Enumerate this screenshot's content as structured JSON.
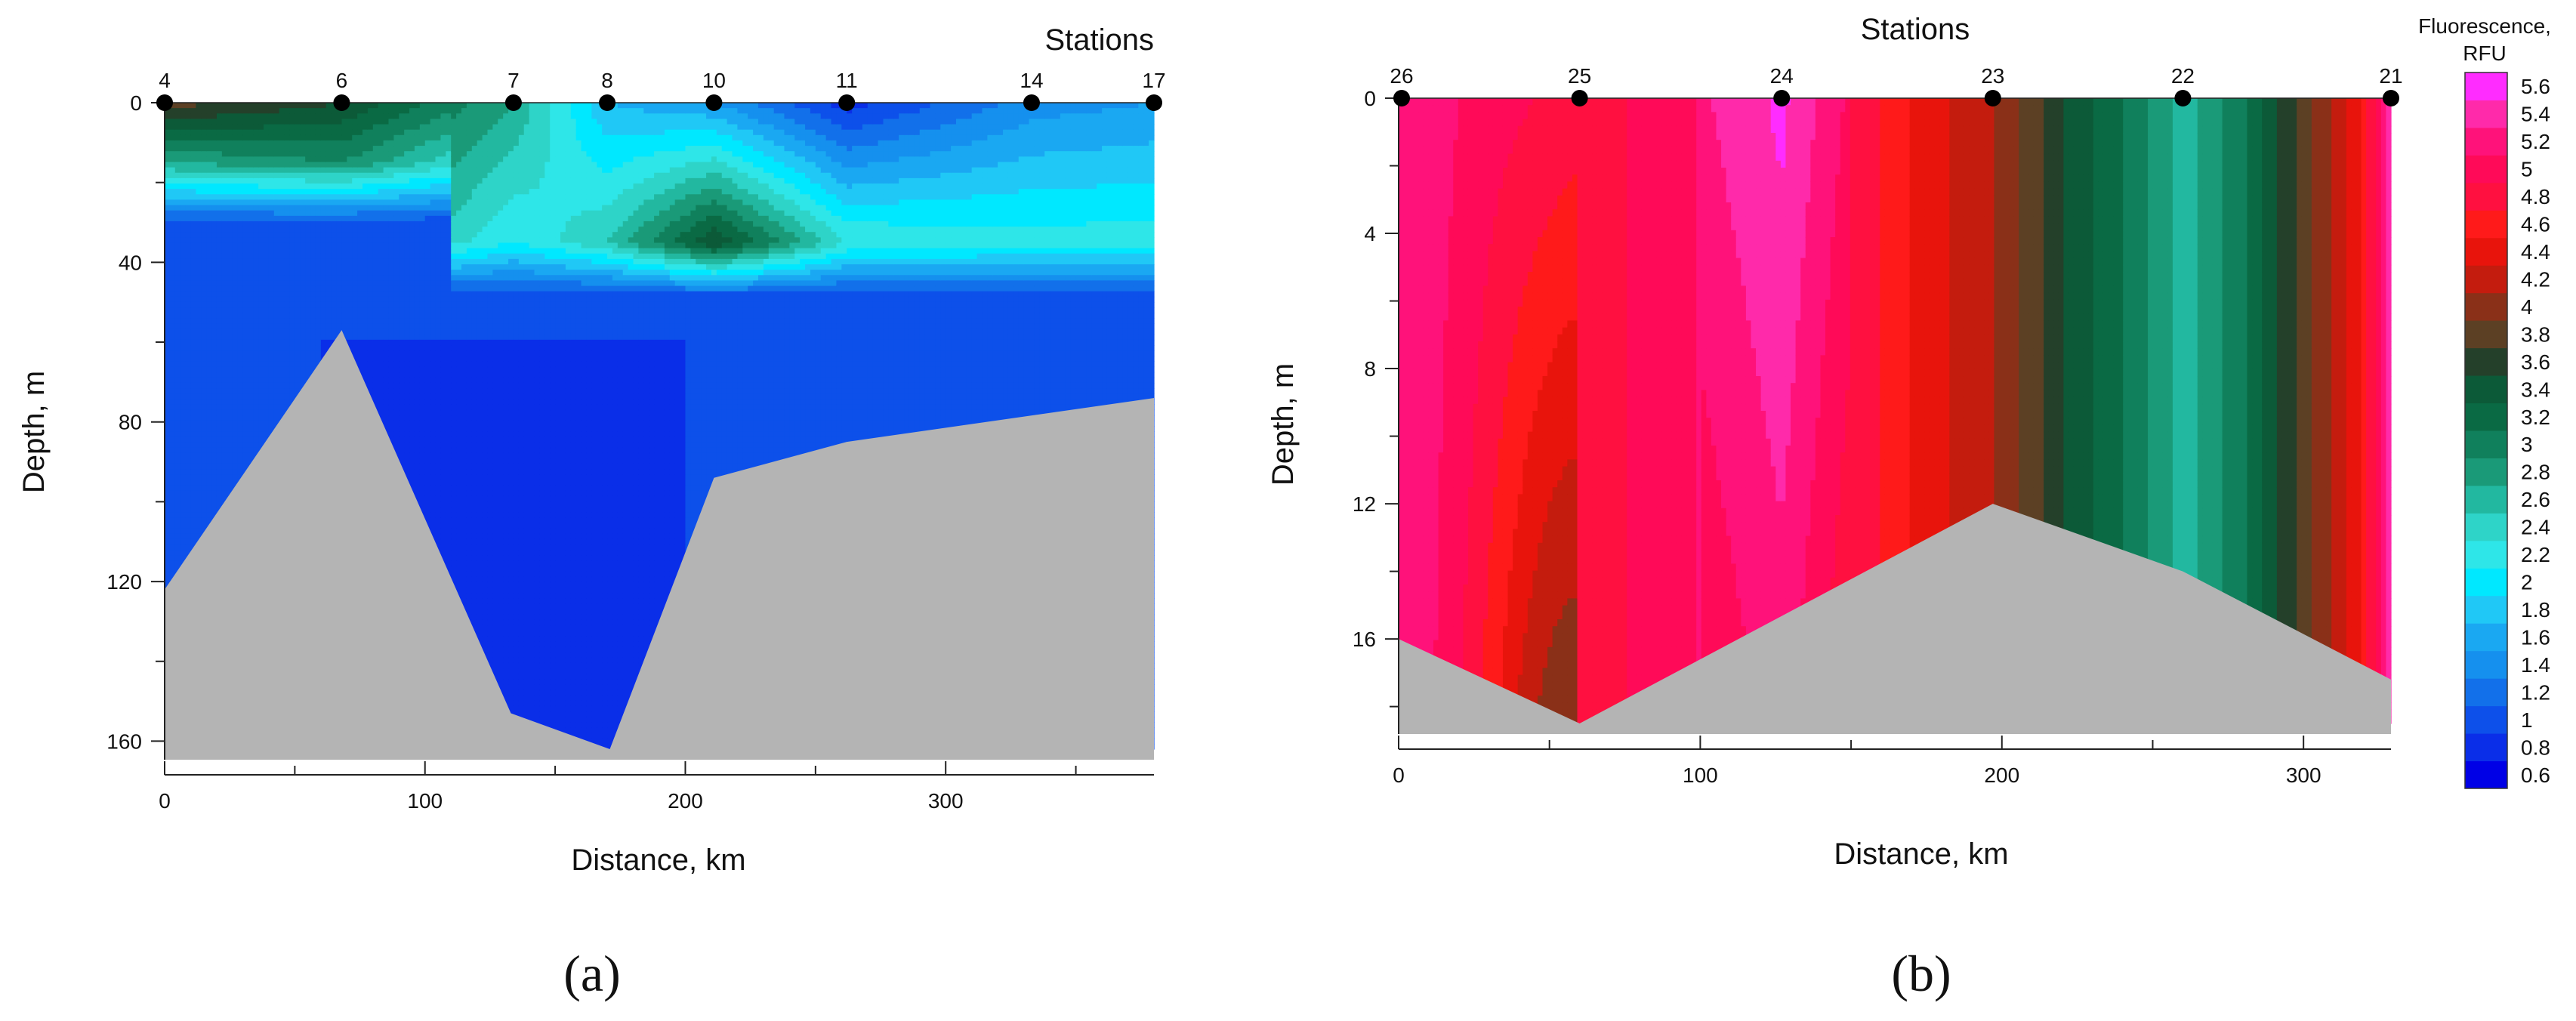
{
  "chart_data": [
    {
      "panel": "a",
      "type": "heatmap",
      "panel_label": "(a)",
      "xlabel": "Distance, km",
      "ylabel": "Depth, m",
      "xlim": [
        0,
        380
      ],
      "ylim": [
        0,
        162
      ],
      "y_inverted": true,
      "xticks": [
        0,
        100,
        200,
        300
      ],
      "yticks": [
        0,
        40,
        80,
        120,
        160
      ],
      "stations_title": "Stations",
      "stations": [
        {
          "label": "4",
          "x": 0
        },
        {
          "label": "6",
          "x": 68
        },
        {
          "label": "7",
          "x": 134
        },
        {
          "label": "8",
          "x": 170
        },
        {
          "label": "10",
          "x": 211
        },
        {
          "label": "11",
          "x": 262
        },
        {
          "label": "14",
          "x": 333
        },
        {
          "label": "17",
          "x": 380
        }
      ],
      "bottom_profile": [
        [
          0,
          122
        ],
        [
          68,
          57
        ],
        [
          133,
          153
        ],
        [
          171,
          162
        ],
        [
          211,
          94
        ],
        [
          262,
          85
        ],
        [
          380,
          74
        ]
      ],
      "fluorescence_field": {
        "surface_values": [
          [
            0,
            3.9
          ],
          [
            68,
            3.6
          ],
          [
            134,
            2.8
          ],
          [
            170,
            1.8
          ],
          [
            211,
            1.6
          ],
          [
            262,
            0.9
          ],
          [
            333,
            1.5
          ],
          [
            380,
            1.6
          ]
        ],
        "subsurface_max": [
          [
            0,
            2.8
          ],
          [
            68,
            3.0
          ],
          [
            134,
            2.2
          ],
          [
            170,
            2.6
          ],
          [
            211,
            3.6
          ],
          [
            262,
            2.4
          ],
          [
            333,
            2.3
          ],
          [
            380,
            2.3
          ]
        ],
        "deep_value": 1.0,
        "subsurface_max_depth_m": [
          15,
          35
        ]
      }
    },
    {
      "panel": "b",
      "type": "heatmap",
      "panel_label": "(b)",
      "xlabel": "Distance, km",
      "ylabel": "Depth, m",
      "xlim": [
        0,
        329
      ],
      "ylim": [
        0,
        18.5
      ],
      "y_inverted": true,
      "xticks": [
        0,
        100,
        200,
        300
      ],
      "yticks": [
        0,
        4,
        8,
        12,
        16
      ],
      "stations_title": "Stations",
      "stations": [
        {
          "label": "26",
          "x": 1
        },
        {
          "label": "25",
          "x": 60
        },
        {
          "label": "24",
          "x": 127
        },
        {
          "label": "23",
          "x": 197
        },
        {
          "label": "22",
          "x": 260
        },
        {
          "label": "21",
          "x": 329
        }
      ],
      "bottom_profile": [
        [
          0,
          16
        ],
        [
          60,
          18.5
        ],
        [
          197,
          12
        ],
        [
          260,
          14
        ],
        [
          329,
          17.2
        ]
      ],
      "fluorescence_field": {
        "surface_values": [
          [
            0,
            5.4
          ],
          [
            30,
            5.1
          ],
          [
            60,
            4.9
          ],
          [
            90,
            5.1
          ],
          [
            127,
            5.5
          ],
          [
            150,
            5.0
          ],
          [
            175,
            4.5
          ],
          [
            197,
            4.2
          ],
          [
            210,
            3.9
          ],
          [
            225,
            3.5
          ],
          [
            245,
            3.1
          ],
          [
            260,
            2.7
          ],
          [
            278,
            3.1
          ],
          [
            300,
            3.9
          ],
          [
            318,
            4.5
          ],
          [
            329,
            5.5
          ]
        ]
      },
      "colorbar": {
        "title_lines": [
          "Fluorescence,",
          "RFU"
        ],
        "levels": [
          0.6,
          0.8,
          1,
          1.2,
          1.4,
          1.6,
          1.8,
          2,
          2.2,
          2.4,
          2.6,
          2.8,
          3,
          3.2,
          3.4,
          3.6,
          3.8,
          4,
          4.2,
          4.4,
          4.6,
          4.8,
          5,
          5.2,
          5.4,
          5.6
        ],
        "tick_labels": [
          "0.6",
          "0.8",
          "1",
          "1.2",
          "1.4",
          "1.6",
          "1.8",
          "2",
          "2.2",
          "2.4",
          "2.6",
          "2.8",
          "3",
          "3.2",
          "3.4",
          "3.6",
          "3.8",
          "4",
          "4.2",
          "4.4",
          "4.6",
          "4.8",
          "5",
          "5.2",
          "5.4",
          "5.6"
        ],
        "colors": [
          "#0000e6",
          "#0a2ee8",
          "#0d50ea",
          "#1270ea",
          "#1590ee",
          "#1aa8f2",
          "#20c8f6",
          "#00e8ff",
          "#2ee6e8",
          "#2ed4c8",
          "#22b8a0",
          "#1a9a78",
          "#10805c",
          "#0a6a44",
          "#0c5a38",
          "#24402a",
          "#5c4024",
          "#8a3018",
          "#c41c0e",
          "#e8140c",
          "#ff1a1a",
          "#ff1040",
          "#ff0a58",
          "#ff127a",
          "#ff2aaa",
          "#ff2cff"
        ]
      }
    }
  ]
}
